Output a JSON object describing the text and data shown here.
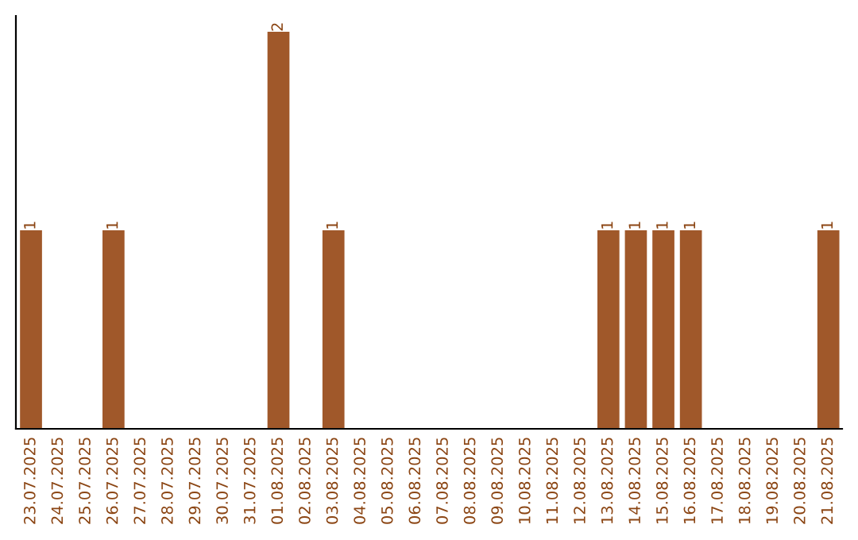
{
  "chart_data": {
    "type": "bar",
    "categories": [
      "23.07.2025",
      "24.07.2025",
      "25.07.2025",
      "26.07.2025",
      "27.07.2025",
      "28.07.2025",
      "29.07.2025",
      "30.07.2025",
      "31.07.2025",
      "01.08.2025",
      "02.08.2025",
      "03.08.2025",
      "04.08.2025",
      "05.08.2025",
      "06.08.2025",
      "07.08.2025",
      "08.08.2025",
      "09.08.2025",
      "10.08.2025",
      "11.08.2025",
      "12.08.2025",
      "13.08.2025",
      "14.08.2025",
      "15.08.2025",
      "16.08.2025",
      "17.08.2025",
      "18.08.2025",
      "19.08.2025",
      "20.08.2025",
      "21.08.2025"
    ],
    "values": [
      1,
      0,
      0,
      1,
      0,
      0,
      0,
      0,
      0,
      2,
      0,
      1,
      0,
      0,
      0,
      0,
      0,
      0,
      0,
      0,
      0,
      1,
      1,
      1,
      1,
      0,
      0,
      0,
      0,
      1
    ],
    "value_labels": [
      "1",
      null,
      null,
      "1",
      null,
      null,
      null,
      null,
      null,
      "2",
      null,
      "1",
      null,
      null,
      null,
      null,
      null,
      null,
      null,
      null,
      null,
      "1",
      "1",
      "1",
      "1",
      null,
      null,
      null,
      null,
      "1"
    ],
    "color": "#a0582a",
    "tick_labels": "x",
    "grid": false,
    "legend": false
  }
}
